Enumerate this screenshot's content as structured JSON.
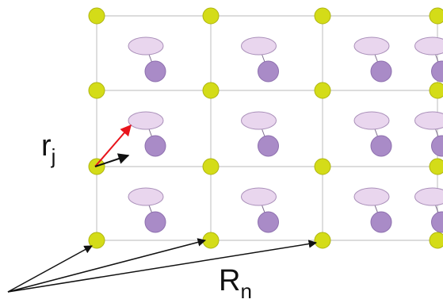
{
  "labels": {
    "r_main": "r",
    "r_sub": "j",
    "R_main": "R",
    "R_sub": "n"
  },
  "colors": {
    "lattice_node": "#d4dc18",
    "lattice_node_edge": "#aeb512",
    "grid_line": "#c8c8c8",
    "orbital_lobe": "#e9d6ee",
    "orbital_lobe_edge": "#a98fb9",
    "orbital_core": "#a98bc7",
    "orbital_core_edge": "#8d6fae",
    "vector_r_primary": "#e8141c",
    "vector_r_secondary": "#111111",
    "vector_R": "#111111"
  },
  "lattice": {
    "node_rows": 4,
    "node_cols": 4,
    "cell_rows": 3,
    "cell_cols": 4
  }
}
